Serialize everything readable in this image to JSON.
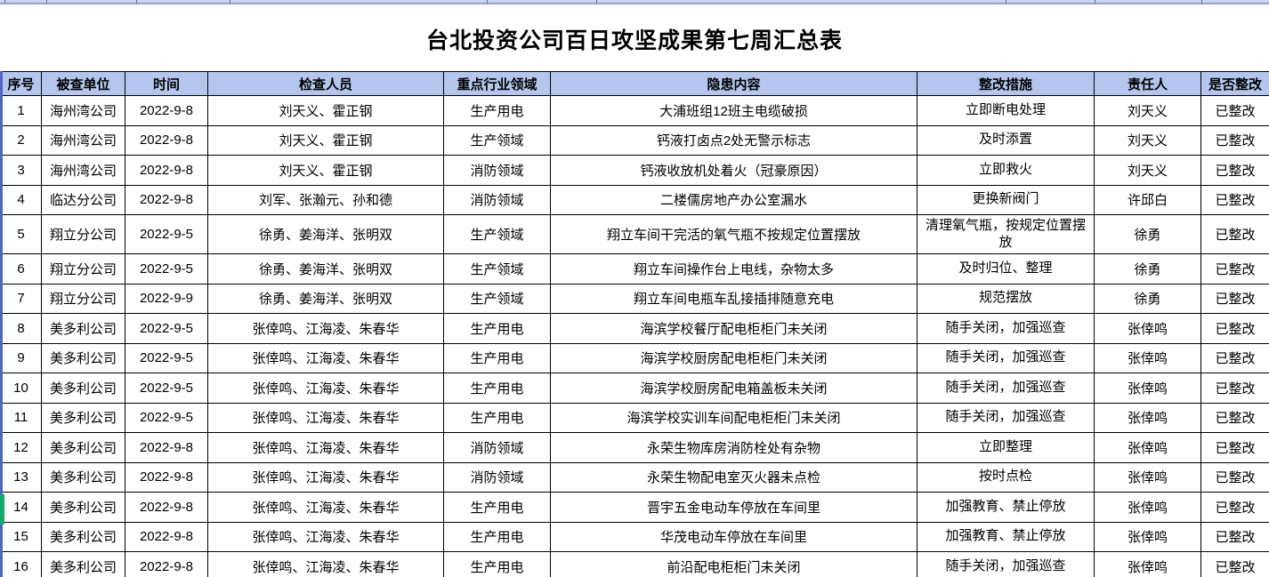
{
  "page": {
    "title": "台北投资公司百日攻坚成果第七周汇总表"
  },
  "table": {
    "columns": [
      "序号",
      "被查单位",
      "时间",
      "检查人员",
      "重点行业领域",
      "隐患内容",
      "整改措施",
      "责任人",
      "是否整改"
    ],
    "rows": [
      [
        "1",
        "海州湾公司",
        "2022-9-8",
        "刘天义、霍正钢",
        "生产用电",
        "大浦班组12班主电缆破损",
        "立即断电处理",
        "刘天义",
        "已整改"
      ],
      [
        "2",
        "海州湾公司",
        "2022-9-8",
        "刘天义、霍正钢",
        "生产领域",
        "钙液打卤点2处无警示标志",
        "及时添置",
        "刘天义",
        "已整改"
      ],
      [
        "3",
        "海州湾公司",
        "2022-9-8",
        "刘天义、霍正钢",
        "消防领域",
        "钙液收放机处着火（冠豪原因）",
        "立即救火",
        "刘天义",
        "已整改"
      ],
      [
        "4",
        "临达分公司",
        "2022-9-8",
        "刘军、张瀚元、孙和德",
        "消防领域",
        "二楼儒房地产办公室漏水",
        "更换新阀门",
        "许邱白",
        "已整改"
      ],
      [
        "5",
        "翔立分公司",
        "2022-9-5",
        "徐勇、姜海洋、张明双",
        "生产领域",
        "翔立车间干完活的氧气瓶不按规定位置摆放",
        "清理氧气瓶，按规定位置摆放",
        "徐勇",
        "已整改"
      ],
      [
        "6",
        "翔立分公司",
        "2022-9-5",
        "徐勇、姜海洋、张明双",
        "生产领域",
        "翔立车间操作台上电线，杂物太多",
        "及时归位、整理",
        "徐勇",
        "已整改"
      ],
      [
        "7",
        "翔立分公司",
        "2022-9-9",
        "徐勇、姜海洋、张明双",
        "生产领域",
        "翔立车间电瓶车乱接插排随意充电",
        "规范摆放",
        "徐勇",
        "已整改"
      ],
      [
        "8",
        "美多利公司",
        "2022-9-5",
        "张倖鸣、江海凌、朱春华",
        "生产用电",
        "海滨学校餐厅配电柜柜门未关闭",
        "随手关闭，加强巡查",
        "张倖鸣",
        "已整改"
      ],
      [
        "9",
        "美多利公司",
        "2022-9-5",
        "张倖鸣、江海凌、朱春华",
        "生产用电",
        "海滨学校厨房配电柜柜门未关闭",
        "随手关闭，加强巡查",
        "张倖鸣",
        "已整改"
      ],
      [
        "10",
        "美多利公司",
        "2022-9-5",
        "张倖鸣、江海凌、朱春华",
        "生产用电",
        "海滨学校厨房配电箱盖板未关闭",
        "随手关闭，加强巡查",
        "张倖鸣",
        "已整改"
      ],
      [
        "11",
        "美多利公司",
        "2022-9-5",
        "张倖鸣、江海凌、朱春华",
        "生产用电",
        "海滨学校实训车间配电柜柜门未关闭",
        "随手关闭，加强巡查",
        "张倖鸣",
        "已整改"
      ],
      [
        "12",
        "美多利公司",
        "2022-9-8",
        "张倖鸣、江海凌、朱春华",
        "消防领域",
        "永荣生物库房消防栓处有杂物",
        "立即整理",
        "张倖鸣",
        "已整改"
      ],
      [
        "13",
        "美多利公司",
        "2022-9-8",
        "张倖鸣、江海凌、朱春华",
        "消防领域",
        "永荣生物配电室灭火器未点检",
        "按时点检",
        "张倖鸣",
        "已整改"
      ],
      [
        "14",
        "美多利公司",
        "2022-9-8",
        "张倖鸣、江海凌、朱春华",
        "生产用电",
        "晋宇五金电动车停放在车间里",
        "加强教育、禁止停放",
        "张倖鸣",
        "已整改"
      ],
      [
        "15",
        "美多利公司",
        "2022-9-8",
        "张倖鸣、江海凌、朱春华",
        "生产用电",
        "华茂电动车停放在车间里",
        "加强教育、禁止停放",
        "张倖鸣",
        "已整改"
      ],
      [
        "16",
        "美多利公司",
        "2022-9-8",
        "张倖鸣、江海凌、朱春华",
        "生产用电",
        "前沿配电柜柜门未关闭",
        "随手关闭，加强巡查",
        "张倖鸣",
        "已整改"
      ]
    ]
  },
  "colors": {
    "header_bg": "#b4c6ee",
    "top_strip_bg": "#ccd5ef",
    "grid_border": "#000000",
    "outer_edge_blue": "#4d66c4",
    "row14_marker_green": "#17a96b"
  }
}
